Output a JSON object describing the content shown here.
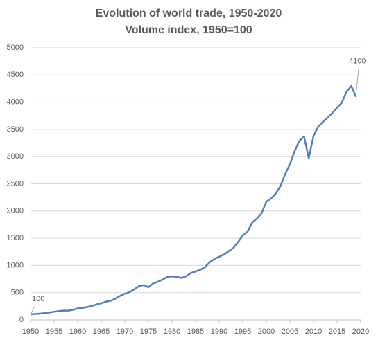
{
  "chart_data": {
    "type": "line",
    "title": "Evolution of world trade, 1950-2020",
    "subtitle": "Volume index, 1950=100",
    "x": [
      1950,
      1951,
      1952,
      1953,
      1954,
      1955,
      1956,
      1957,
      1958,
      1959,
      1960,
      1961,
      1962,
      1963,
      1964,
      1965,
      1966,
      1967,
      1968,
      1969,
      1970,
      1971,
      1972,
      1973,
      1974,
      1975,
      1976,
      1977,
      1978,
      1979,
      1980,
      1981,
      1982,
      1983,
      1984,
      1985,
      1986,
      1987,
      1988,
      1989,
      1990,
      1991,
      1992,
      1993,
      1994,
      1995,
      1996,
      1997,
      1998,
      1999,
      2000,
      2001,
      2002,
      2003,
      2004,
      2005,
      2006,
      2007,
      2008,
      2009,
      2010,
      2011,
      2012,
      2013,
      2014,
      2015,
      2016,
      2017,
      2018,
      2019
    ],
    "series": [
      {
        "name": "Volume index",
        "color": "#4f7fbf",
        "values": [
          100,
          110,
          115,
          125,
          135,
          150,
          160,
          170,
          170,
          185,
          210,
          220,
          235,
          255,
          285,
          305,
          335,
          350,
          390,
          440,
          480,
          510,
          560,
          620,
          640,
          600,
          670,
          700,
          740,
          790,
          800,
          790,
          770,
          800,
          860,
          890,
          920,
          970,
          1060,
          1120,
          1160,
          1200,
          1260,
          1320,
          1430,
          1550,
          1620,
          1790,
          1860,
          1960,
          2170,
          2230,
          2320,
          2460,
          2680,
          2860,
          3100,
          3290,
          3370,
          2970,
          3380,
          3550,
          3640,
          3720,
          3800,
          3900,
          3990,
          4190,
          4300,
          4100
        ]
      }
    ],
    "annotations": [
      "100",
      "4100"
    ],
    "xlim": [
      1950,
      2020
    ],
    "xticks": [
      1950,
      1955,
      1960,
      1965,
      1970,
      1975,
      1980,
      1985,
      1990,
      1995,
      2000,
      2005,
      2010,
      2015,
      2020
    ],
    "ylim": [
      0,
      5000
    ],
    "yticks": [
      0,
      500,
      1000,
      1500,
      2000,
      2500,
      3000,
      3500,
      4000,
      4500,
      5000
    ],
    "grid": true
  }
}
